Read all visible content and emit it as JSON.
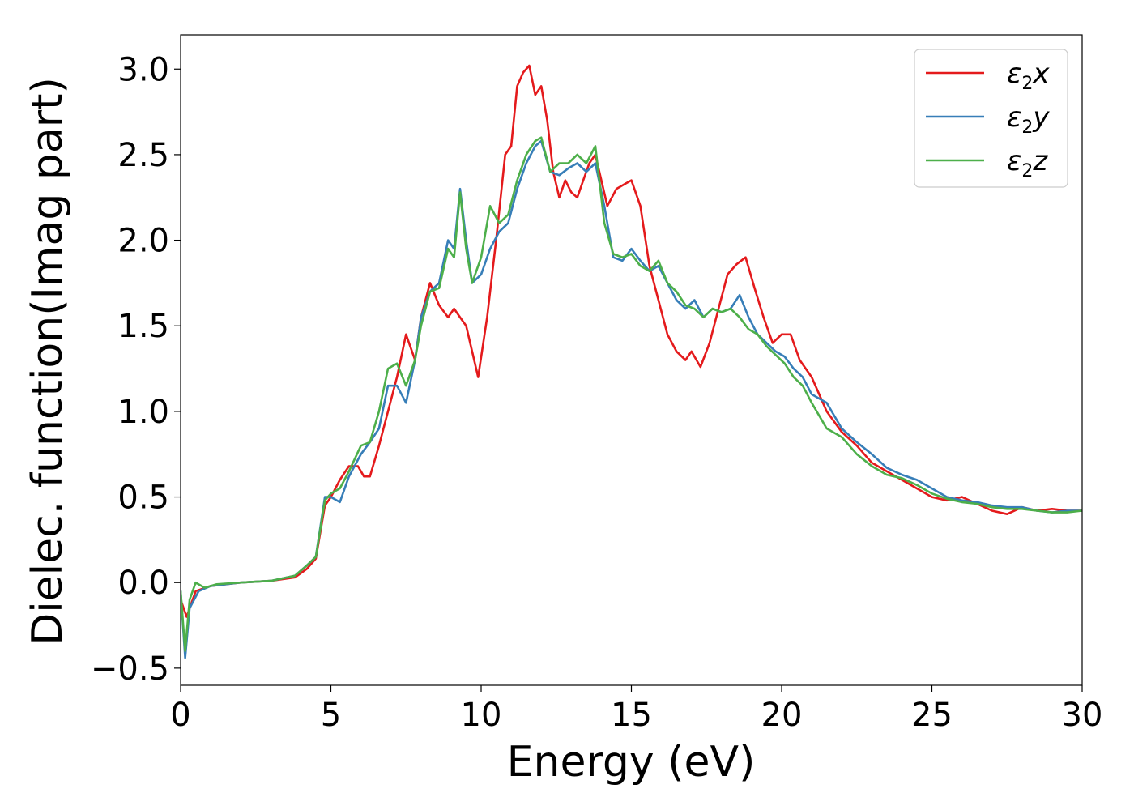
{
  "chart_data": {
    "type": "line",
    "title": "",
    "xlabel": "Energy (eV)",
    "ylabel": "Dielec. function(Imag part)",
    "xlim": [
      0,
      30
    ],
    "ylim": [
      -0.6,
      3.2
    ],
    "xticks": [
      0,
      5,
      10,
      15,
      20,
      25,
      30
    ],
    "xtick_labels": [
      "0",
      "5",
      "10",
      "15",
      "20",
      "25",
      "30"
    ],
    "yticks": [
      -0.5,
      0.0,
      0.5,
      1.0,
      1.5,
      2.0,
      2.5,
      3.0
    ],
    "ytick_labels": [
      "−0.5",
      "0.0",
      "0.5",
      "1.0",
      "1.5",
      "2.0",
      "2.5",
      "3.0"
    ],
    "grid": false,
    "legend_position": "top-right",
    "series": [
      {
        "name": "ε₂x",
        "legend_base": "ε",
        "legend_sub": "2",
        "legend_suffix": "x",
        "color": "#e41a1c",
        "x": [
          0,
          0.2,
          0.5,
          1.0,
          2.0,
          3.0,
          3.8,
          4.2,
          4.5,
          4.8,
          5.0,
          5.3,
          5.6,
          5.9,
          6.1,
          6.3,
          6.6,
          6.9,
          7.2,
          7.5,
          7.8,
          8.0,
          8.3,
          8.6,
          8.9,
          9.1,
          9.3,
          9.5,
          9.7,
          9.9,
          10.2,
          10.5,
          10.8,
          11.0,
          11.2,
          11.4,
          11.6,
          11.8,
          12.0,
          12.2,
          12.4,
          12.6,
          12.8,
          13.0,
          13.2,
          13.4,
          13.6,
          13.8,
          14.0,
          14.2,
          14.5,
          14.8,
          15.0,
          15.3,
          15.6,
          15.9,
          16.2,
          16.5,
          16.8,
          17.0,
          17.3,
          17.6,
          17.9,
          18.2,
          18.5,
          18.8,
          19.1,
          19.4,
          19.7,
          20.0,
          20.3,
          20.6,
          21.0,
          21.5,
          22.0,
          22.5,
          23.0,
          23.5,
          24.0,
          24.5,
          25.0,
          25.5,
          26.0,
          26.5,
          27.0,
          27.5,
          28.0,
          28.5,
          29.0,
          29.5,
          30.0
        ],
        "y": [
          -0.1,
          -0.2,
          -0.05,
          -0.02,
          0.0,
          0.01,
          0.03,
          0.08,
          0.14,
          0.45,
          0.5,
          0.6,
          0.68,
          0.68,
          0.62,
          0.62,
          0.8,
          1.0,
          1.2,
          1.45,
          1.3,
          1.55,
          1.75,
          1.62,
          1.55,
          1.6,
          1.55,
          1.5,
          1.35,
          1.2,
          1.55,
          2.0,
          2.5,
          2.55,
          2.9,
          2.98,
          3.02,
          2.85,
          2.9,
          2.7,
          2.4,
          2.25,
          2.35,
          2.28,
          2.25,
          2.35,
          2.45,
          2.5,
          2.35,
          2.2,
          2.3,
          2.33,
          2.35,
          2.2,
          1.85,
          1.65,
          1.45,
          1.35,
          1.3,
          1.35,
          1.26,
          1.4,
          1.6,
          1.8,
          1.86,
          1.9,
          1.72,
          1.55,
          1.4,
          1.45,
          1.45,
          1.3,
          1.2,
          1.0,
          0.88,
          0.8,
          0.7,
          0.65,
          0.6,
          0.55,
          0.5,
          0.48,
          0.5,
          0.46,
          0.42,
          0.4,
          0.44,
          0.42,
          0.43,
          0.42,
          0.42
        ]
      },
      {
        "name": "ε₂y",
        "legend_base": "ε",
        "legend_sub": "2",
        "legend_suffix": "y",
        "color": "#377eb8",
        "x": [
          0,
          0.15,
          0.3,
          0.6,
          1.0,
          2.0,
          3.0,
          3.8,
          4.2,
          4.5,
          4.8,
          5.0,
          5.3,
          5.6,
          6.0,
          6.3,
          6.6,
          6.9,
          7.2,
          7.5,
          7.8,
          8.0,
          8.3,
          8.6,
          8.9,
          9.1,
          9.3,
          9.5,
          9.7,
          10.0,
          10.3,
          10.6,
          10.9,
          11.2,
          11.5,
          11.8,
          12.0,
          12.3,
          12.6,
          12.9,
          13.2,
          13.5,
          13.8,
          14.1,
          14.4,
          14.7,
          15.0,
          15.3,
          15.6,
          15.9,
          16.2,
          16.5,
          16.8,
          17.1,
          17.4,
          17.7,
          18.0,
          18.3,
          18.6,
          18.9,
          19.2,
          19.5,
          19.8,
          20.1,
          20.4,
          20.7,
          21.0,
          21.5,
          22.0,
          22.5,
          23.0,
          23.5,
          24.0,
          24.5,
          25.0,
          25.5,
          26.0,
          26.5,
          27.0,
          27.5,
          28.0,
          28.5,
          29.0,
          29.5,
          30.0
        ],
        "y": [
          -0.05,
          -0.44,
          -0.15,
          -0.05,
          -0.02,
          0.0,
          0.01,
          0.04,
          0.1,
          0.15,
          0.5,
          0.5,
          0.47,
          0.62,
          0.75,
          0.82,
          0.9,
          1.15,
          1.15,
          1.05,
          1.3,
          1.55,
          1.7,
          1.75,
          2.0,
          1.95,
          2.3,
          2.0,
          1.75,
          1.8,
          1.95,
          2.05,
          2.1,
          2.3,
          2.45,
          2.55,
          2.58,
          2.4,
          2.38,
          2.42,
          2.45,
          2.4,
          2.45,
          2.2,
          1.9,
          1.88,
          1.95,
          1.88,
          1.82,
          1.85,
          1.75,
          1.65,
          1.6,
          1.65,
          1.55,
          1.6,
          1.58,
          1.6,
          1.68,
          1.55,
          1.45,
          1.4,
          1.35,
          1.32,
          1.25,
          1.2,
          1.1,
          1.05,
          0.9,
          0.82,
          0.75,
          0.67,
          0.63,
          0.6,
          0.55,
          0.5,
          0.48,
          0.47,
          0.45,
          0.44,
          0.44,
          0.42,
          0.41,
          0.42,
          0.42
        ]
      },
      {
        "name": "ε₂z",
        "legend_base": "ε",
        "legend_sub": "2",
        "legend_suffix": "z",
        "color": "#4daf4a",
        "x": [
          0,
          0.15,
          0.3,
          0.5,
          0.8,
          1.2,
          2.0,
          3.0,
          3.8,
          4.2,
          4.5,
          4.8,
          5.0,
          5.3,
          5.6,
          6.0,
          6.3,
          6.6,
          6.9,
          7.2,
          7.5,
          7.8,
          8.0,
          8.3,
          8.6,
          8.9,
          9.1,
          9.3,
          9.5,
          9.7,
          10.0,
          10.3,
          10.6,
          10.9,
          11.2,
          11.5,
          11.8,
          12.0,
          12.3,
          12.6,
          12.9,
          13.2,
          13.5,
          13.8,
          14.1,
          14.4,
          14.7,
          15.0,
          15.3,
          15.6,
          15.9,
          16.2,
          16.5,
          16.8,
          17.1,
          17.4,
          17.7,
          18.0,
          18.3,
          18.6,
          18.9,
          19.2,
          19.5,
          19.8,
          20.1,
          20.4,
          20.7,
          21.0,
          21.5,
          22.0,
          22.5,
          23.0,
          23.5,
          24.0,
          24.5,
          25.0,
          25.5,
          26.0,
          26.5,
          27.0,
          27.5,
          28.0,
          28.5,
          29.0,
          29.5,
          30.0
        ],
        "y": [
          -0.05,
          -0.4,
          -0.1,
          0.0,
          -0.03,
          -0.01,
          0.0,
          0.01,
          0.04,
          0.1,
          0.15,
          0.48,
          0.52,
          0.55,
          0.65,
          0.8,
          0.82,
          1.0,
          1.25,
          1.28,
          1.15,
          1.3,
          1.5,
          1.7,
          1.72,
          1.95,
          1.9,
          2.28,
          1.95,
          1.75,
          1.9,
          2.2,
          2.1,
          2.15,
          2.35,
          2.5,
          2.58,
          2.6,
          2.4,
          2.45,
          2.45,
          2.5,
          2.45,
          2.55,
          2.1,
          1.92,
          1.9,
          1.92,
          1.85,
          1.82,
          1.88,
          1.75,
          1.7,
          1.62,
          1.6,
          1.55,
          1.6,
          1.58,
          1.6,
          1.55,
          1.48,
          1.45,
          1.38,
          1.33,
          1.28,
          1.2,
          1.15,
          1.05,
          0.9,
          0.85,
          0.75,
          0.68,
          0.63,
          0.61,
          0.57,
          0.52,
          0.49,
          0.47,
          0.46,
          0.44,
          0.43,
          0.43,
          0.42,
          0.41,
          0.41,
          0.42
        ]
      }
    ]
  }
}
